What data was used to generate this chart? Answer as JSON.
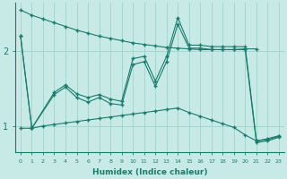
{
  "xlabel": "Humidex (Indice chaleur)",
  "background_color": "#c8eae6",
  "line_color": "#1a7a6e",
  "grid_color": "#9dd4ce",
  "xlim": [
    -0.5,
    23.5
  ],
  "ylim": [
    0.65,
    2.65
  ],
  "yticks": [
    1,
    2
  ],
  "xticks": [
    0,
    1,
    2,
    3,
    4,
    5,
    6,
    7,
    8,
    9,
    10,
    11,
    12,
    13,
    14,
    15,
    16,
    17,
    18,
    19,
    20,
    21,
    22,
    23
  ],
  "series1_x": [
    0,
    1,
    2,
    3,
    4,
    5,
    6,
    7,
    8,
    9,
    10,
    11,
    12,
    13,
    14,
    15,
    16,
    17,
    18,
    19,
    20,
    21
  ],
  "series1_y": [
    2.55,
    2.48,
    2.43,
    2.38,
    2.33,
    2.28,
    2.24,
    2.2,
    2.17,
    2.14,
    2.11,
    2.09,
    2.07,
    2.05,
    2.04,
    2.03,
    2.02,
    2.02,
    2.02,
    2.02,
    2.03,
    2.03
  ],
  "series2_x": [
    0,
    1,
    3,
    4,
    5,
    6,
    7,
    8,
    9,
    10,
    11,
    12,
    13,
    14,
    15,
    16,
    17,
    18,
    19,
    20,
    21,
    22,
    23
  ],
  "series2_y": [
    2.2,
    0.97,
    1.45,
    1.55,
    1.43,
    1.38,
    1.42,
    1.36,
    1.33,
    1.9,
    1.93,
    1.6,
    1.93,
    2.45,
    2.08,
    2.08,
    2.06,
    2.06,
    2.06,
    2.06,
    0.8,
    0.83,
    0.87
  ],
  "series3_x": [
    0,
    1,
    3,
    4,
    5,
    6,
    7,
    8,
    9,
    10,
    11,
    12,
    13,
    14,
    15,
    16,
    17,
    18,
    19,
    20,
    21,
    22,
    23
  ],
  "series3_y": [
    2.2,
    0.97,
    1.42,
    1.52,
    1.38,
    1.32,
    1.38,
    1.3,
    1.28,
    1.82,
    1.86,
    1.53,
    1.86,
    2.36,
    2.04,
    2.04,
    2.02,
    2.02,
    2.02,
    2.02,
    0.78,
    0.8,
    0.85
  ],
  "series4_x": [
    0,
    1,
    2,
    3,
    4,
    5,
    6,
    7,
    8,
    9,
    10,
    11,
    12,
    13,
    14,
    15,
    16,
    17,
    18,
    19,
    20,
    21,
    22,
    23
  ],
  "series4_y": [
    0.97,
    0.97,
    1.0,
    1.02,
    1.04,
    1.06,
    1.08,
    1.1,
    1.12,
    1.14,
    1.16,
    1.18,
    1.2,
    1.22,
    1.24,
    1.18,
    1.13,
    1.08,
    1.03,
    0.98,
    0.88,
    0.8,
    0.82,
    0.86
  ]
}
